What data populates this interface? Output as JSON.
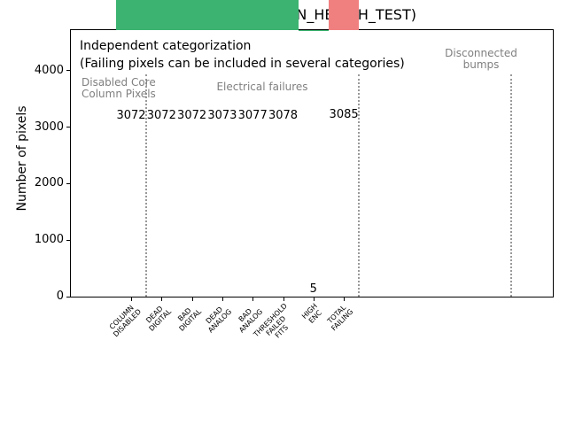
{
  "chart_data": {
    "type": "bar",
    "title": "0x22b8d (MIN_HEALTH_TEST)",
    "ylabel": "Number of pixels",
    "xlabel": "",
    "ylim": [
      0,
      4718
    ],
    "yticks": [
      0,
      1000,
      2000,
      3000,
      4000
    ],
    "grid": false,
    "legend": null,
    "categories": [
      [
        "COLUMN",
        "DISABLED"
      ],
      [
        "DEAD",
        "DIGITAL"
      ],
      [
        "BAD",
        "DIGITAL"
      ],
      [
        "DEAD",
        "ANALOG"
      ],
      [
        "BAD",
        "ANALOG"
      ],
      [
        "THRESHOLD",
        "FAILED",
        "FITS"
      ],
      [
        "HIGH",
        "ENC"
      ],
      [
        "TOTAL",
        "FAILING"
      ]
    ],
    "values": [
      3072,
      3072,
      3072,
      3073,
      3077,
      3078,
      5,
      3085
    ],
    "bar_value_labels": [
      "3072",
      "3072",
      "3072",
      "3073",
      "3077",
      "3078",
      "5",
      "3085"
    ],
    "bar_colors": [
      "#3cb371",
      "#3cb371",
      "#3cb371",
      "#3cb371",
      "#3cb371",
      "#3cb371",
      "#3cb371",
      "#f08080"
    ],
    "separator_positions": [
      0.5,
      7.5,
      12.5
    ],
    "colors": {
      "category_green": "#3cb371",
      "total_red": "#f08080",
      "group_label_gray": "#808080",
      "separator_gray": "#999999"
    },
    "annotations": {
      "line1": "Independent categorization",
      "line2": "(Failing pixels can be included in several categories)",
      "group_disabled": "Disabled Core\nColumn Pixels",
      "group_electrical": "Electrical failures",
      "group_bumps": "Disconnected\nbumps"
    }
  }
}
